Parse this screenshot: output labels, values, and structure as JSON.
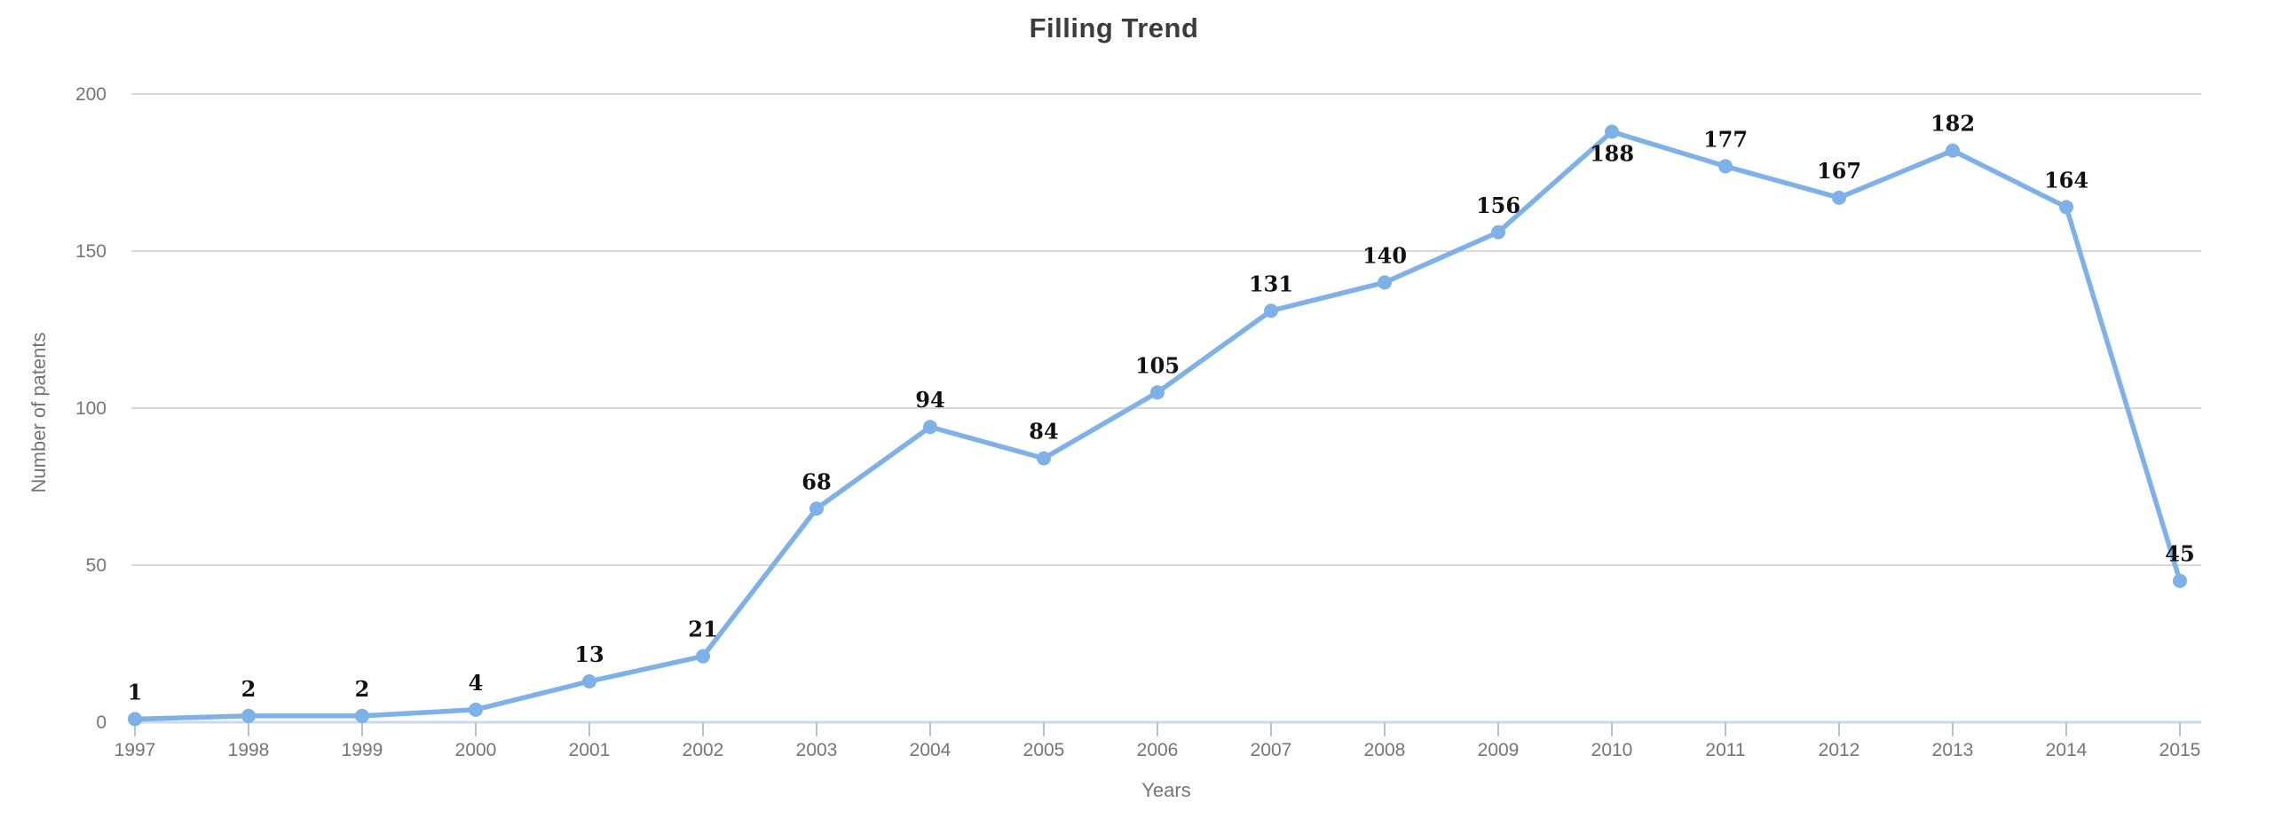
{
  "chart_data": {
    "type": "line",
    "title": "Filling Trend",
    "xlabel": "Years",
    "ylabel": "Number of patents",
    "categories": [
      "1997",
      "1998",
      "1999",
      "2000",
      "2001",
      "2002",
      "2003",
      "2004",
      "2005",
      "2006",
      "2007",
      "2008",
      "2009",
      "2010",
      "2011",
      "2012",
      "2013",
      "2014",
      "2015"
    ],
    "values": [
      1,
      2,
      2,
      4,
      13,
      21,
      68,
      94,
      84,
      105,
      131,
      140,
      156,
      188,
      177,
      167,
      182,
      164,
      45
    ],
    "data_point_labels": [
      "1",
      "2",
      "2",
      "4",
      "13",
      "21",
      "68",
      "94",
      "84",
      "105",
      "131",
      "140",
      "156",
      "188",
      "177",
      "167",
      "182",
      "164",
      "45"
    ],
    "ylim": [
      0,
      200
    ],
    "yticks": [
      0,
      50,
      100,
      150,
      200
    ],
    "grid": true,
    "legend": "none",
    "colors": {
      "line": "#7db1e8",
      "marker": "#7db1e8",
      "gridline": "#d9d9d9",
      "baseline": "#c9d9ef",
      "axis_tick": "#b6c4da",
      "tick_label": "#757575",
      "axis_title": "#757575",
      "title": "#3c3c3c",
      "data_label": "#111111"
    }
  }
}
